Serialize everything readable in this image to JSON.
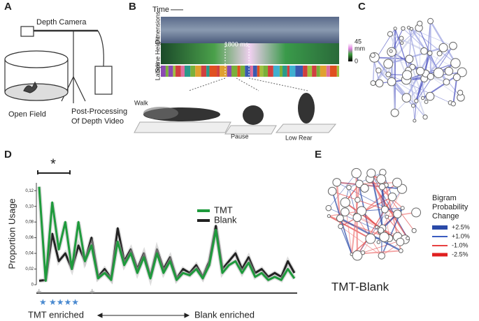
{
  "panels": {
    "a": {
      "letter": "A",
      "camera": "Depth Camera",
      "field": "Open Field",
      "processing": [
        "Post-Processing",
        "Of Depth Video"
      ]
    },
    "b": {
      "letter": "B",
      "time": "Time",
      "rows": [
        "Dimensions",
        "Spine Height",
        "Labels"
      ],
      "duration": "1800 ms",
      "scale_max": "45",
      "scale_unit": "mm",
      "scale_min": "0",
      "poses": [
        "Walk",
        "Pause",
        "Low Rear"
      ]
    },
    "c": {
      "letter": "C"
    },
    "d": {
      "letter": "D",
      "significance": "*",
      "x_left": "TMT enriched",
      "x_right": "Blank enriched"
    },
    "e": {
      "letter": "E",
      "legend_title": [
        "Bigram",
        "Probability",
        "Change"
      ],
      "legend_items": [
        {
          "label": "+2.5%",
          "color": "#2a4aa8"
        },
        {
          "label": "+1.0%",
          "color": "#3a5cc0"
        },
        {
          "label": "-1.0%",
          "color": "#e84040"
        },
        {
          "label": "-2.5%",
          "color": "#e02020"
        }
      ],
      "caption": "TMT-Blank"
    }
  },
  "chart_data": {
    "type": "line",
    "y_label": "Proportion Usage",
    "categories": [
      null,
      null,
      null,
      null,
      null,
      null,
      null,
      null,
      null,
      null,
      null,
      null,
      null,
      null,
      null,
      null,
      null,
      null,
      null,
      null,
      null,
      null,
      null,
      null,
      null,
      null,
      null,
      null,
      null,
      null,
      null,
      null,
      null,
      null,
      null,
      null,
      null,
      null,
      null,
      null
    ],
    "series": [
      {
        "name": "TMT",
        "color": "#1e9a3c",
        "values": [
          0.125,
          0.005,
          0.105,
          0.045,
          0.08,
          0.02,
          0.08,
          0.03,
          0.05,
          0.008,
          0.015,
          0.006,
          0.055,
          0.025,
          0.04,
          0.015,
          0.035,
          0.008,
          0.04,
          0.015,
          0.03,
          0.006,
          0.015,
          0.012,
          0.02,
          0.008,
          0.025,
          0.07,
          0.015,
          0.025,
          0.03,
          0.015,
          0.028,
          0.01,
          0.015,
          0.006,
          0.01,
          0.006,
          0.02,
          0.008
        ]
      },
      {
        "name": "Blank",
        "color": "#222222",
        "values": [
          0.005,
          0.006,
          0.065,
          0.03,
          0.04,
          0.02,
          0.05,
          0.03,
          0.06,
          0.01,
          0.02,
          0.008,
          0.072,
          0.03,
          0.045,
          0.02,
          0.04,
          0.01,
          0.045,
          0.02,
          0.035,
          0.008,
          0.02,
          0.015,
          0.025,
          0.01,
          0.03,
          0.075,
          0.02,
          0.03,
          0.04,
          0.02,
          0.035,
          0.015,
          0.02,
          0.01,
          0.015,
          0.01,
          0.03,
          0.015
        ]
      }
    ],
    "ylim": [
      0,
      0.13
    ],
    "yticks": [
      0,
      {
        "value": 0.02,
        "label": "0,02"
      },
      {
        "value": 0.04,
        "label": "0,04"
      },
      {
        "value": 0.06,
        "label": "0,06"
      },
      {
        "value": 0.08,
        "label": "0,08"
      },
      {
        "value": 0.1,
        "label": "0,10"
      },
      {
        "value": 0.12,
        "label": "0,12"
      }
    ]
  }
}
